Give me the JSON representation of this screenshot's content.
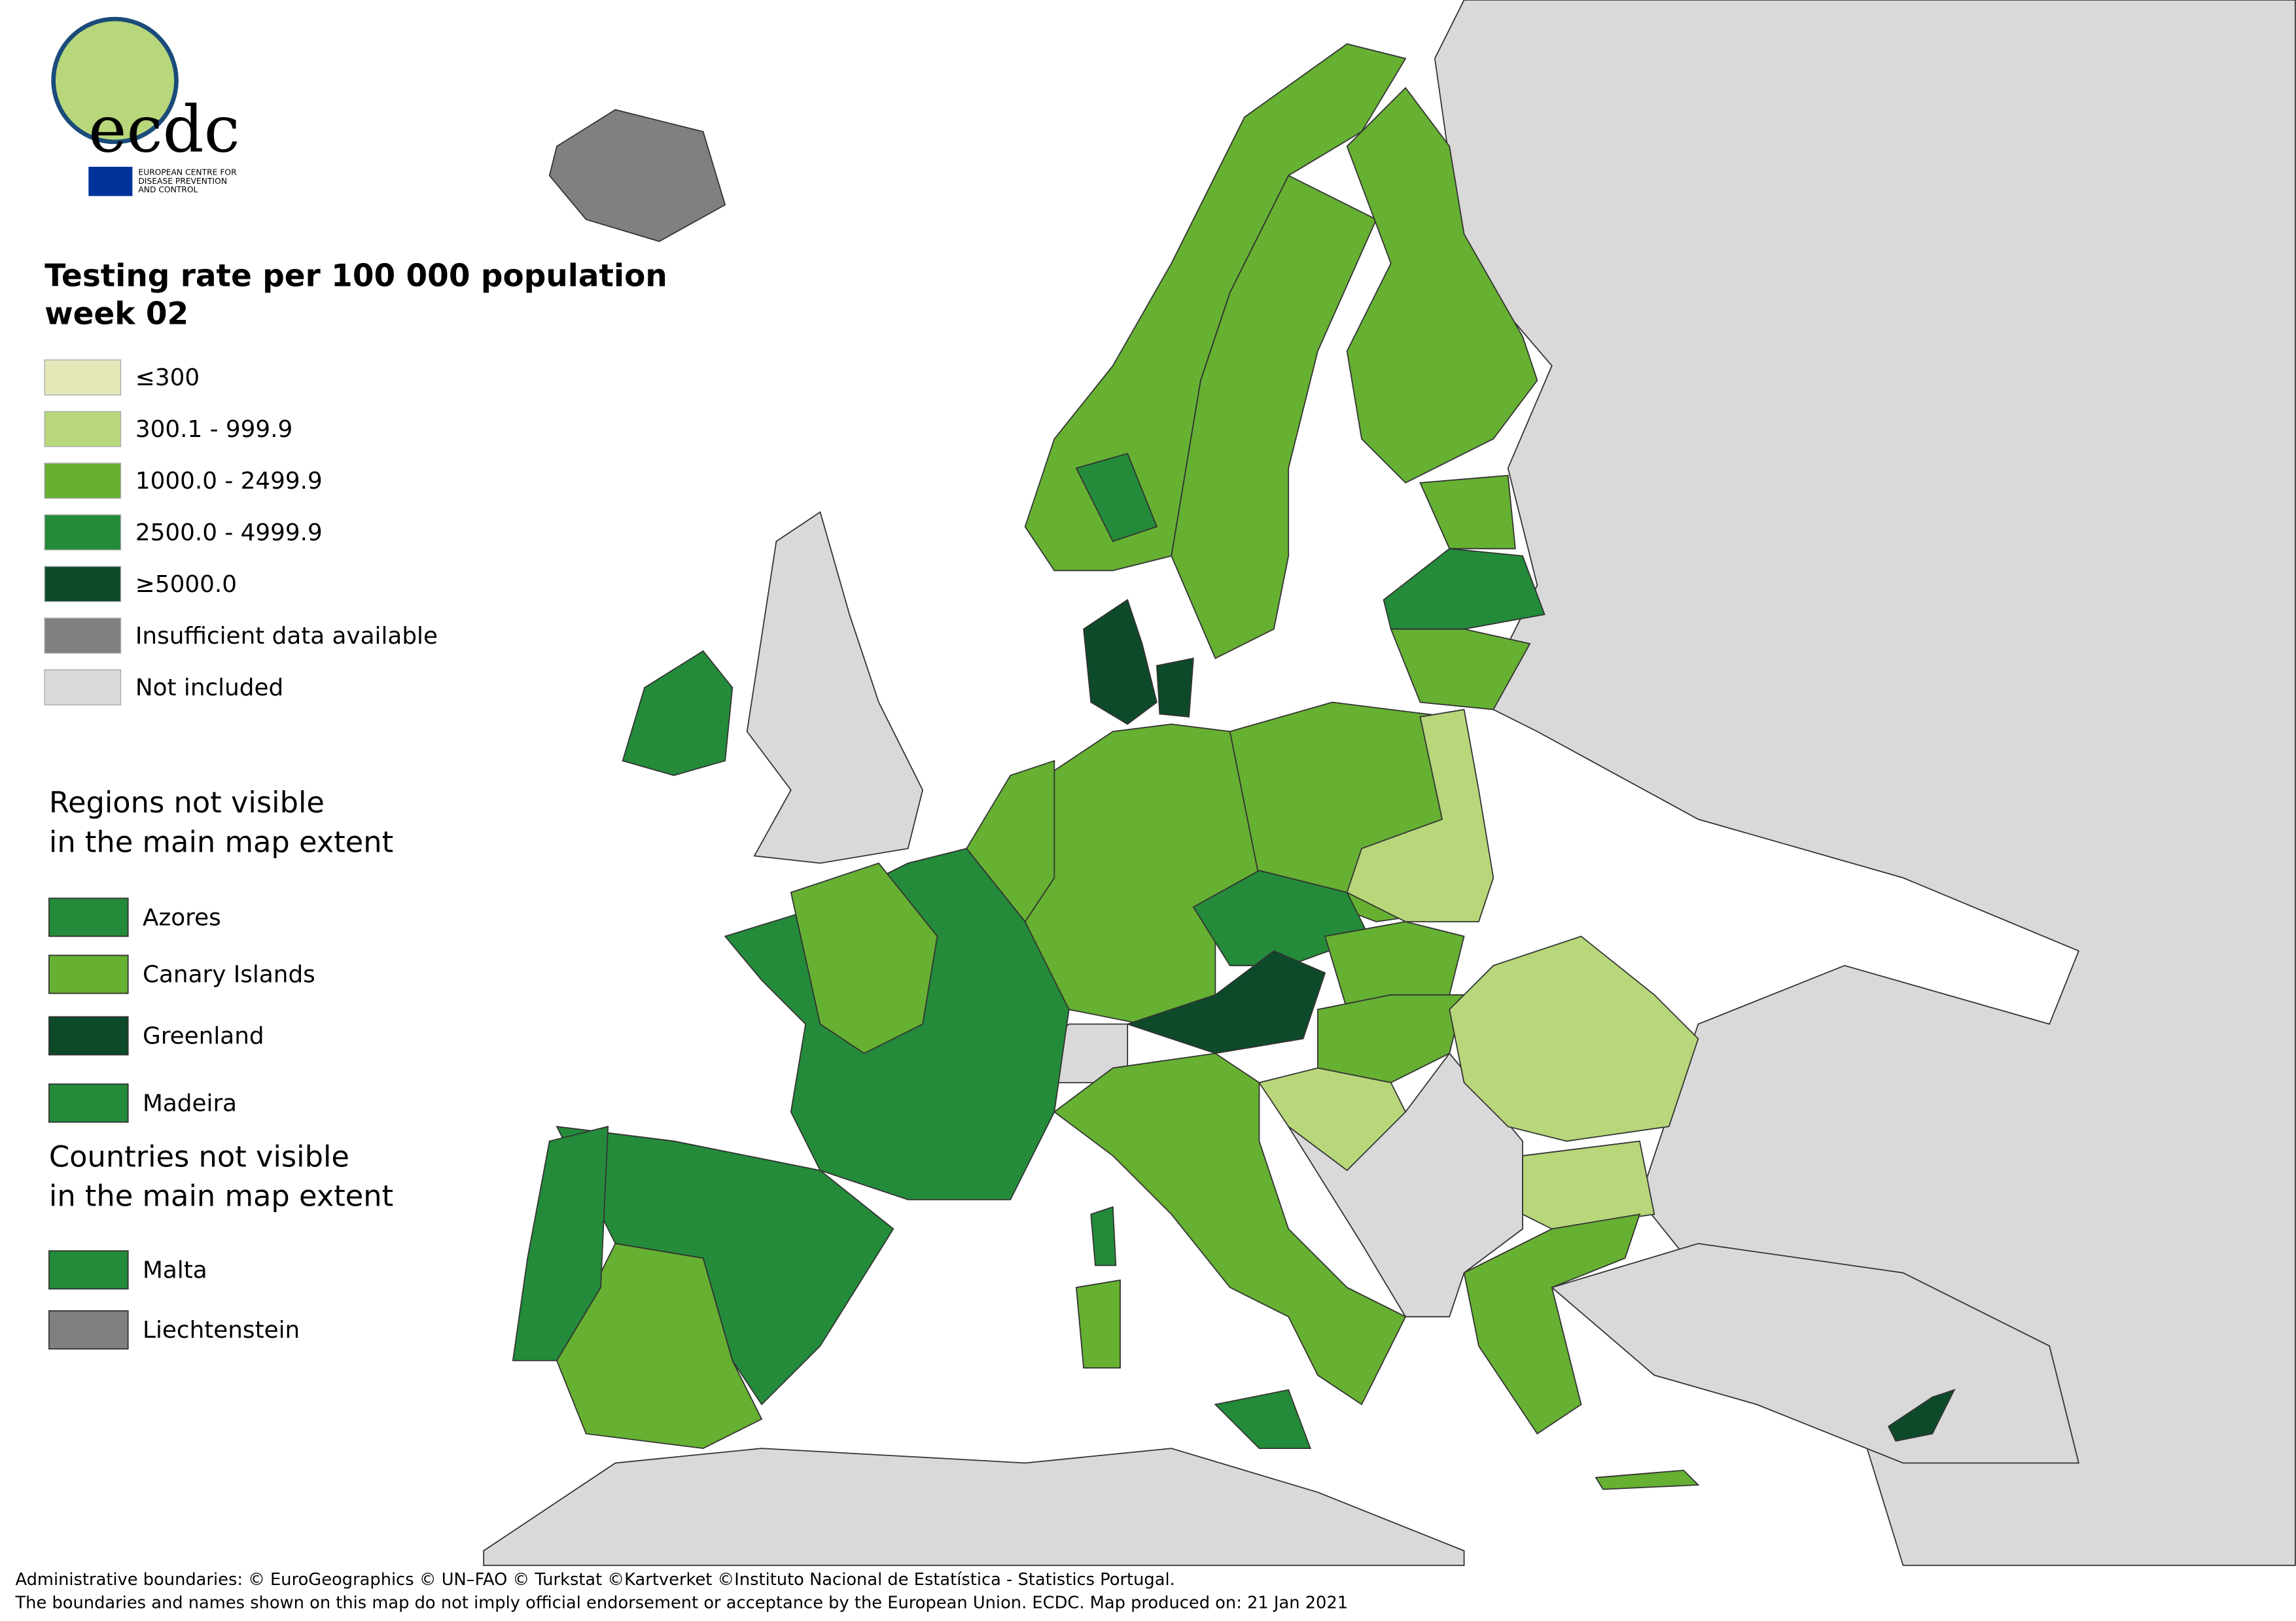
{
  "logo": {
    "text": "ecdc",
    "subtitle": [
      "EUROPEAN CENTRE FOR",
      "DISEASE PREVENTION",
      "AND CONTROL"
    ]
  },
  "legend": {
    "title": [
      "Testing rate per 100 000 population",
      "week 02"
    ],
    "items": [
      {
        "label": "≤300",
        "color": "#e6e7b9"
      },
      {
        "label": "300.1 - 999.9",
        "color": "#b7d77a"
      },
      {
        "label": "1000.0 - 2499.9",
        "color": "#66b032"
      },
      {
        "label": "2500.0 - 4999.9",
        "color": "#238b3a"
      },
      {
        "label": "≥5000.0",
        "color": "#0d4a2a"
      },
      {
        "label": "Insufficient data available",
        "color": "#808080"
      },
      {
        "label": "Not included",
        "color": "#d9d9d9"
      }
    ]
  },
  "regions_not_visible": {
    "title": [
      "Regions not visible",
      "in the main map extent"
    ],
    "items": [
      {
        "label": "Azores",
        "color": "#238b3a"
      },
      {
        "label": "Canary Islands",
        "color": "#66b032"
      },
      {
        "label": "Greenland",
        "color": "#0d4a2a"
      },
      {
        "label": "Madeira",
        "color": "#238b3a"
      }
    ]
  },
  "countries_not_visible": {
    "title": [
      "Countries not visible",
      "in the main map extent"
    ],
    "items": [
      {
        "label": "Malta",
        "color": "#238b3a"
      },
      {
        "label": "Liechtenstein",
        "color": "#808080"
      }
    ]
  },
  "footer": [
    "Administrative boundaries: © EuroGeographics © UN–FAO © Turkstat ©Kartverket ©Instituto Nacional de Estatística - Statistics Portugal.",
    "The boundaries and names shown on this map do not imply official endorsement or acceptance by the European Union. ECDC. Map produced on: 21 Jan 2021"
  ]
}
